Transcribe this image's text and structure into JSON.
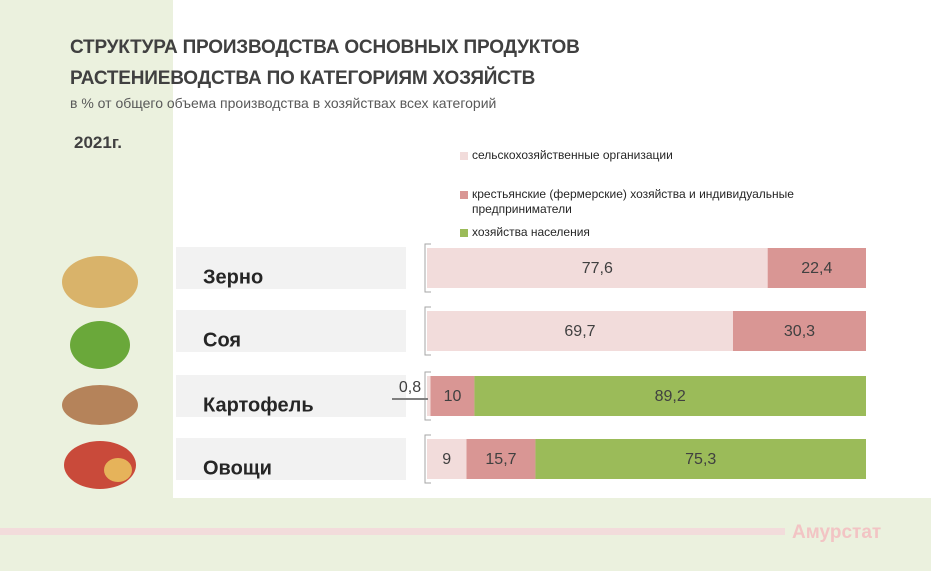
{
  "chart_data": {
    "type": "stacked-bar-horizontal",
    "title": [
      "СТРУКТУРА ПРОИЗВОДСТВА ОСНОВНЫХ ПРОДУКТОВ",
      "РАСТЕНИЕВОДСТВА ПО КАТЕГОРИЯМ ХОЗЯЙСТВ"
    ],
    "subtitle": "в % от общего объема производства в хозяйствах всех категорий",
    "year": "2021г.",
    "source": "Амурстат",
    "categories": [
      "Зерно",
      "Соя",
      "Картофель",
      "Овощи"
    ],
    "xlim": [
      0,
      100
    ],
    "series": [
      {
        "name": "сельскохозяйственные организации",
        "color": "#f2dcdb",
        "values": [
          77.6,
          69.7,
          0.8,
          9
        ],
        "value_labels": [
          "77,6",
          "69,7",
          "0,8",
          "9"
        ]
      },
      {
        "name": "крестьянские (фермерские) хозяйства и индивидуальные предприниматели",
        "color": "#d99694",
        "values": [
          22.4,
          30.3,
          10,
          15.7
        ],
        "value_labels": [
          "22,4",
          "30,3",
          "10",
          "15,7"
        ]
      },
      {
        "name": "хозяйства населения",
        "color": "#9bbb59",
        "values": [
          null,
          null,
          89.2,
          75.3
        ],
        "value_labels": [
          null,
          null,
          "89,2",
          "75,3"
        ]
      }
    ]
  }
}
